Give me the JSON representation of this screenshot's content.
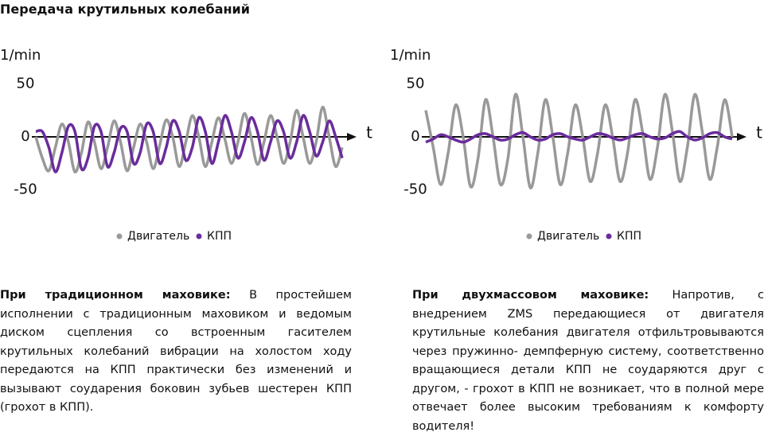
{
  "title": "Передача крутильных колебаний",
  "chart_data": [
    {
      "type": "line",
      "y_label": "1/min",
      "x_label": "t",
      "ylim": [
        -60,
        60
      ],
      "yticks": [
        -50,
        0,
        50
      ],
      "series": [
        {
          "name": "Двигатель",
          "color": "#999999",
          "values": [
            0,
            -20,
            -32,
            -10,
            12,
            -5,
            -33,
            -15,
            14,
            -5,
            -30,
            -10,
            15,
            -5,
            -32,
            -10,
            12,
            -5,
            -30,
            -8,
            16,
            0,
            -28,
            -5,
            20,
            0,
            -28,
            -5,
            18,
            -2,
            -25,
            -5,
            22,
            0,
            -26,
            -5,
            20,
            0,
            -25,
            -5,
            25,
            0,
            -25,
            -5,
            28,
            0,
            -28,
            -10
          ]
        },
        {
          "name": "КПП",
          "color": "#6a2c9c",
          "values": [
            5,
            5,
            -10,
            -33,
            -15,
            10,
            5,
            -30,
            -20,
            10,
            5,
            -28,
            -15,
            8,
            5,
            -25,
            -15,
            12,
            5,
            -25,
            -10,
            15,
            5,
            -22,
            -10,
            18,
            5,
            -25,
            -5,
            20,
            5,
            -20,
            -5,
            18,
            5,
            -22,
            -5,
            15,
            5,
            -20,
            -5,
            20,
            5,
            -18,
            -5,
            15,
            0,
            -20
          ]
        }
      ]
    },
    {
      "type": "line",
      "y_label": "1/min",
      "x_label": "t",
      "ylim": [
        -60,
        60
      ],
      "yticks": [
        -50,
        0,
        50
      ],
      "series": [
        {
          "name": "Двигатель",
          "color": "#999999",
          "values": [
            25,
            -10,
            -45,
            -15,
            30,
            0,
            -47,
            -20,
            35,
            0,
            -45,
            -20,
            40,
            0,
            -48,
            -15,
            35,
            0,
            -45,
            -15,
            30,
            0,
            -42,
            -15,
            30,
            0,
            -42,
            -15,
            35,
            5,
            -40,
            -10,
            40,
            5,
            -42,
            -10,
            40,
            5,
            -40,
            -10,
            35,
            0
          ]
        },
        {
          "name": "КПП",
          "color": "#6a2c9c",
          "values": [
            -5,
            -2,
            2,
            0,
            -3,
            -5,
            -2,
            2,
            3,
            0,
            -3,
            -2,
            2,
            4,
            0,
            -3,
            -2,
            2,
            3,
            0,
            -2,
            -3,
            0,
            3,
            2,
            -1,
            -3,
            -1,
            2,
            3,
            0,
            -2,
            -1,
            3,
            5,
            0,
            -3,
            -1,
            3,
            4,
            0,
            -2
          ]
        }
      ]
    }
  ],
  "paragraphs": [
    {
      "lead": "При традиционном маховике:",
      "text": "В простейшем исполнении с традиционным маховиком и ведомым диском сцепления со встроенным гасителем крутильных колебаний вибрации на холостом ходу передаются на КПП практически без изменений и вызывают соударения боковин зубьев шестерен КПП (грохот в КПП)."
    },
    {
      "lead": "При двухмассовом маховике:",
      "text": "Напротив, с внедрением ZMS передающиеся от двигателя крутильные колебания двигателя отфильтровываются через пружинно- демпферную систему, соответственно вращающиеся детали КПП не соударяются друг с другом, - грохот в КПП не возникает, что в полной мере отвечает более высоким требованиям к комфорту водителя!"
    }
  ]
}
